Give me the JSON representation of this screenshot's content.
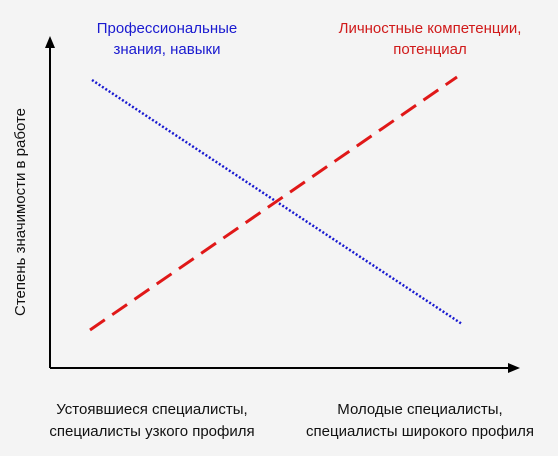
{
  "lines": [
    {
      "label": [
        "Профессиональные",
        "знания, навыки"
      ]
    },
    {
      "label": [
        "Личностные компетенции,",
        "потенциал"
      ]
    }
  ],
  "y_axis_label": "Степень значимости  в  работе",
  "x_axis_labels": {
    "left": [
      "Устоявшиеся специалисты,",
      "специалисты узкого профиля"
    ],
    "right": [
      "Молодые специалисты,",
      "специалисты широкого профиля"
    ]
  }
}
